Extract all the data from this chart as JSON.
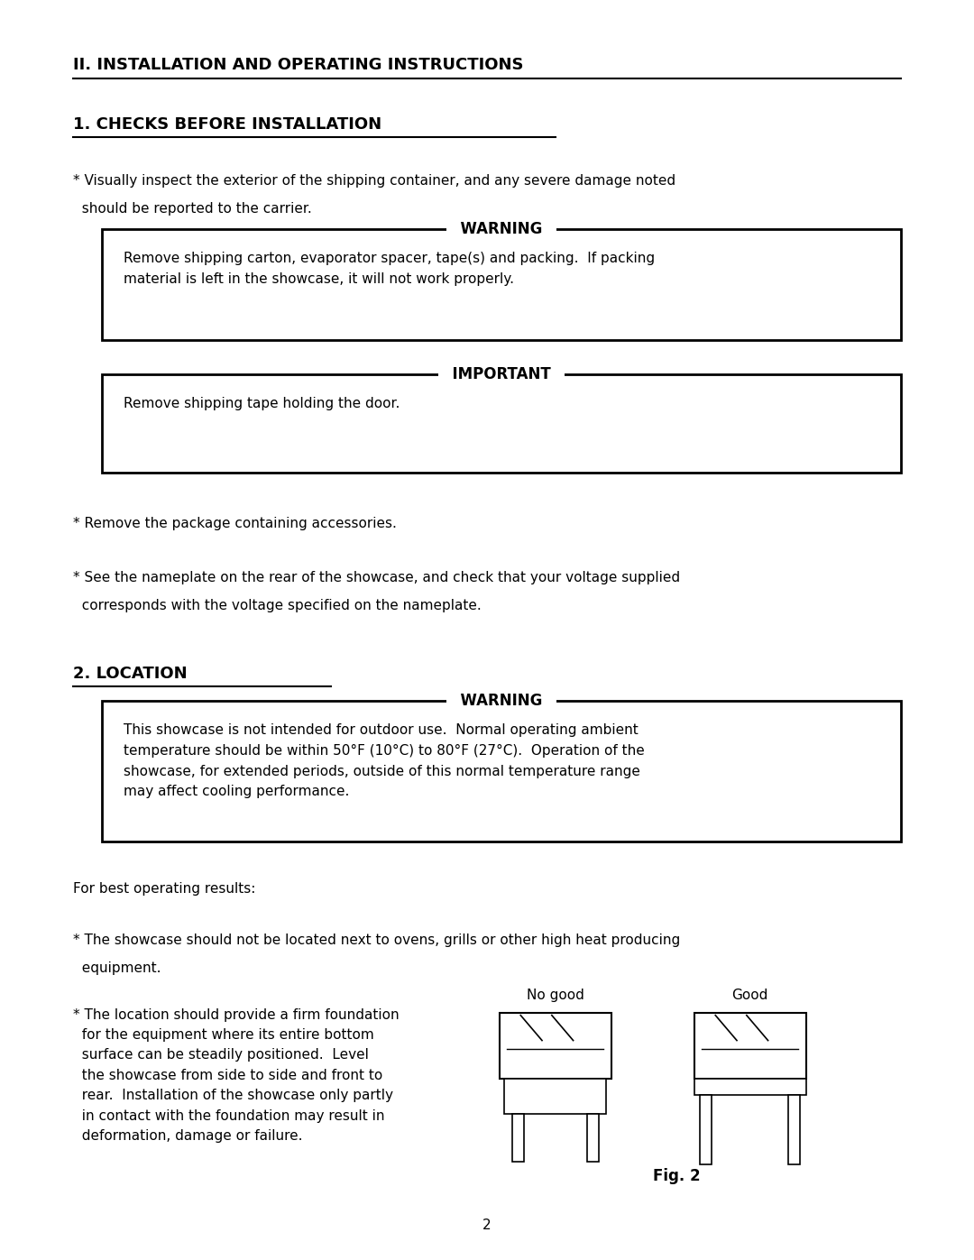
{
  "bg_color": "#ffffff",
  "text_color": "#000000",
  "section1_title": "II. INSTALLATION AND OPERATING INSTRUCTIONS",
  "section2_title": "1. CHECKS BEFORE INSTALLATION",
  "section3_title": "2. LOCATION",
  "bullet1_line1": "* Visually inspect the exterior of the shipping container, and any severe damage noted",
  "bullet1_line2": "  should be reported to the carrier.",
  "warning1_title": "WARNING",
  "warning1_body": "Remove shipping carton, evaporator spacer, tape(s) and packing.  If packing\nmaterial is left in the showcase, it will not work properly.",
  "important1_title": "IMPORTANT",
  "important1_body": "Remove shipping tape holding the door.",
  "bullet2": "* Remove the package containing accessories.",
  "bullet3_line1": "* See the nameplate on the rear of the showcase, and check that your voltage supplied",
  "bullet3_line2": "  corresponds with the voltage specified on the nameplate.",
  "warning2_title": "WARNING",
  "warning2_body": "This showcase is not intended for outdoor use.  Normal operating ambient\ntemperature should be within 50°F (10°C) to 80°F (27°C).  Operation of the\nshowcase, for extended periods, outside of this normal temperature range\nmay affect cooling performance.",
  "for_best": "For best operating results:",
  "bullet4_line1": "* The showcase should not be located next to ovens, grills or other high heat producing",
  "bullet4_line2": "  equipment.",
  "bullet5_left": "* The location should provide a firm foundation\n  for the equipment where its entire bottom\n  surface can be steadily positioned.  Level\n  the showcase from side to side and front to\n  rear.  Installation of the showcase only partly\n  in contact with the foundation may result in\n  deformation, damage or failure.",
  "fig2_label": "Fig. 2",
  "no_good_label": "No good",
  "good_label": "Good",
  "page_number": "2"
}
